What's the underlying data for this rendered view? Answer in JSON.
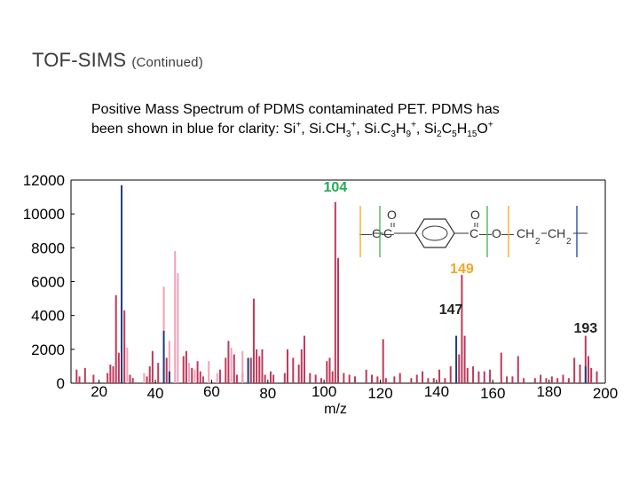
{
  "slide": {
    "title": "TOF-SIMS",
    "subtitle": "(Continued)"
  },
  "caption": {
    "line1": "Positive Mass Spectrum of PDMS contaminated PET.  PDMS has",
    "prefix": "been shown in blue for clarity: Si",
    "ion1_plus": "+",
    "sep1": ", Si.CH",
    "ion2_sub": "3",
    "ion2_plus": "+",
    "sep2": ", Si.C",
    "ion3_sub1": "3",
    "ion3_h": "H",
    "ion3_sub2": "9",
    "ion3_plus": "+",
    "sep3": ", Si",
    "ion4_sub1": "2",
    "ion4_c": "C",
    "ion4_sub2": "5",
    "ion4_h": "H",
    "ion4_sub3": "15",
    "ion4_o": "O",
    "ion4_plus": "+"
  },
  "structure": {
    "o_left": "O",
    "o_right": "O",
    "c_left": "C",
    "c_right": "C",
    "ch2_a": "CH",
    "ch2_a_sub": "2",
    "ch2_b": "CH",
    "ch2_b_sub": "2",
    "o_top_left": "O",
    "o_top_right": "O",
    "dash_left": "—O—",
    "dash_mid": "—O—"
  },
  "colors": {
    "pet": "#c0385a",
    "pet_light": "#f4a0b6",
    "pdms": "#1f3f7a",
    "label_green": "#22aa55",
    "label_orange": "#f5a623",
    "label_dark": "#222222",
    "marker_orange": "#f5a623",
    "marker_green": "#4caf50",
    "marker_blue": "#1f3f9a"
  },
  "chart_data": {
    "type": "bar",
    "xlabel": "m/z",
    "ylabel": "",
    "xlim": [
      10,
      200
    ],
    "ylim": [
      0,
      12000
    ],
    "x_ticks": [
      20,
      40,
      60,
      80,
      100,
      120,
      140,
      160,
      180,
      200
    ],
    "y_ticks": [
      0,
      2000,
      4000,
      6000,
      8000,
      10000,
      12000
    ],
    "grid": false,
    "series": [
      {
        "color_key": "pet",
        "x": [
          12,
          13,
          15,
          18,
          23,
          24,
          25,
          26,
          27,
          28,
          29,
          31,
          32,
          37,
          38,
          39,
          41,
          43,
          44,
          45,
          50,
          51,
          53,
          55,
          56,
          57,
          63,
          65,
          66,
          68,
          69,
          71,
          74,
          75,
          76,
          77,
          78,
          79,
          81,
          82,
          86,
          87,
          89,
          91,
          92,
          93,
          95,
          97,
          99,
          101,
          102,
          103,
          104,
          105,
          107,
          109,
          111,
          115,
          117,
          119,
          121,
          122,
          125,
          127,
          131,
          133,
          135,
          137,
          139,
          141,
          143,
          145,
          148,
          149,
          150,
          151,
          153,
          155,
          157,
          159,
          163,
          165,
          167,
          169,
          171,
          175,
          177,
          179,
          181,
          183,
          185,
          187,
          189,
          191,
          193,
          194,
          195,
          197
        ],
        "values": [
          800,
          400,
          900,
          500,
          600,
          1100,
          1000,
          5200,
          1800,
          900,
          4300,
          500,
          300,
          400,
          1000,
          1900,
          1200,
          2300,
          1500,
          600,
          1600,
          1900,
          900,
          1300,
          700,
          400,
          800,
          1500,
          2500,
          1700,
          500,
          600,
          1500,
          5000,
          2000,
          1600,
          2000,
          500,
          700,
          500,
          600,
          2000,
          1500,
          1100,
          2000,
          2800,
          600,
          500,
          300,
          1300,
          1500,
          700,
          10700,
          7400,
          600,
          500,
          400,
          800,
          500,
          400,
          2600,
          300,
          400,
          600,
          300,
          500,
          700,
          300,
          300,
          800,
          300,
          1000,
          1700,
          6400,
          2800,
          900,
          1000,
          700,
          700,
          800,
          1800,
          400,
          400,
          1600,
          300,
          300,
          500,
          300,
          400,
          300,
          500,
          300,
          1500,
          1100,
          2800,
          1600,
          900,
          700
        ]
      },
      {
        "color_key": "pet_light",
        "x": [
          30,
          36,
          43,
          45,
          47,
          48,
          52,
          54,
          59,
          62,
          67,
          71,
          73
        ],
        "values": [
          2100,
          600,
          5700,
          2500,
          7800,
          6500,
          1200,
          800,
          1300,
          600,
          2100,
          1900,
          1400
        ],
        "name": ""
      },
      {
        "color_key": "pdms",
        "x": [
          28,
          43,
          45,
          73,
          147,
          193
        ],
        "values": [
          11700,
          3100,
          700,
          1500,
          2800,
          1000
        ],
        "name": ""
      }
    ],
    "annotations": [
      {
        "text": "104",
        "x": 104,
        "color_key": "label_green"
      },
      {
        "text": "149",
        "x": 149,
        "color_key": "label_orange"
      },
      {
        "text": "147",
        "x": 147,
        "color_key": "label_dark"
      },
      {
        "text": "193",
        "x": 193,
        "color_key": "label_dark"
      }
    ]
  }
}
